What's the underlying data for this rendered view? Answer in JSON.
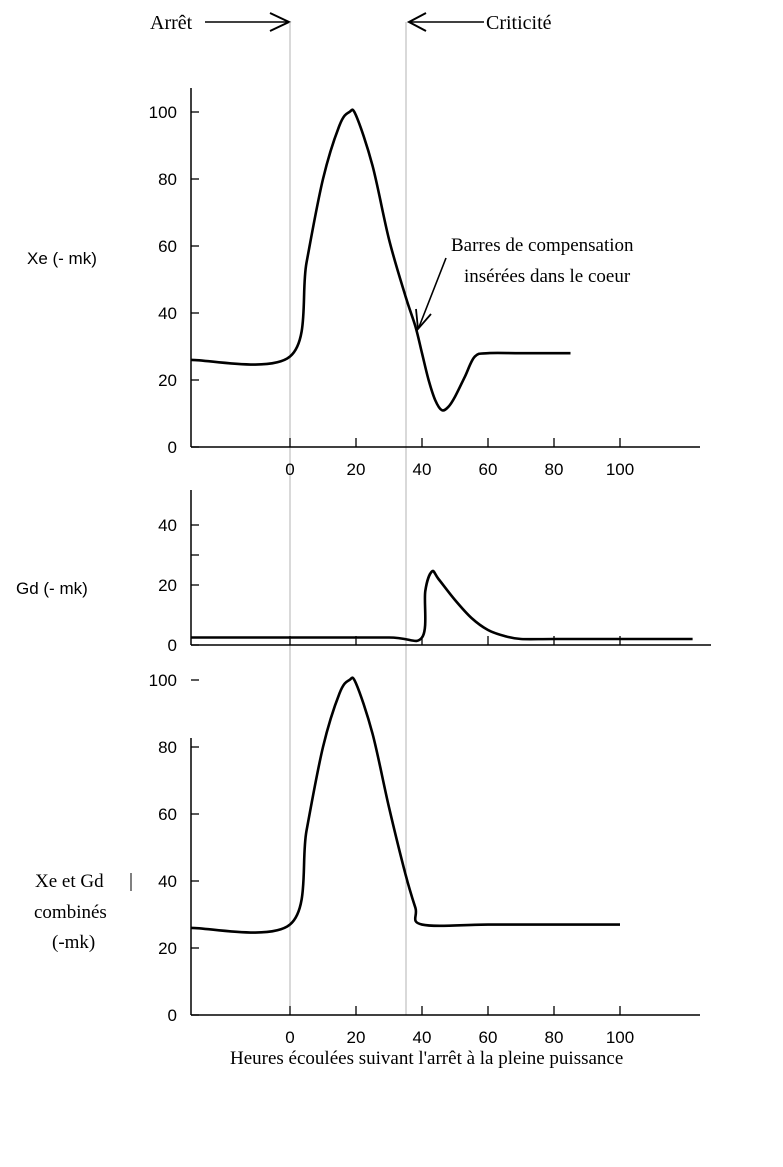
{
  "chart_data": [
    {
      "type": "line",
      "ylabel": "Xe (- mk)",
      "xticks": [
        0,
        20,
        40,
        60,
        80,
        100
      ],
      "yticks": [
        0,
        20,
        40,
        60,
        80,
        100
      ],
      "xlim": [
        -30,
        125
      ],
      "ylim": [
        0,
        110
      ],
      "grid": false,
      "series": [
        {
          "x": [
            -30,
            0,
            5,
            10,
            15,
            18,
            20,
            25,
            30,
            35,
            38,
            40,
            42,
            44,
            46,
            48,
            50,
            53,
            56,
            60,
            70,
            85
          ],
          "y": [
            26,
            27,
            55,
            80,
            96,
            100,
            99,
            84,
            62,
            45,
            36,
            28,
            20,
            14,
            11,
            12,
            15,
            21,
            27,
            28,
            28,
            28
          ]
        }
      ],
      "annotation": {
        "text_line1": "Barres de compensation",
        "text_line2": "insérées dans le coeur",
        "x": 38,
        "y": 38
      }
    },
    {
      "type": "line",
      "ylabel": "Gd (- mk)",
      "xticks": [
        0,
        20,
        40,
        60,
        80,
        100
      ],
      "yticks": [
        0,
        20,
        40
      ],
      "xlim": [
        -30,
        127
      ],
      "ylim": [
        0,
        50
      ],
      "grid": false,
      "series": [
        {
          "x": [
            -30,
            0,
            30,
            40,
            41,
            43,
            45,
            50,
            55,
            60,
            65,
            70,
            80,
            100,
            122
          ],
          "y": [
            2.5,
            2.5,
            2.5,
            2.5,
            18,
            24.5,
            22,
            15,
            9,
            5,
            3,
            2,
            2,
            2,
            2
          ]
        }
      ]
    },
    {
      "type": "line",
      "ylabel": "Xe et Gd combinés (-mk)",
      "ylabel_lines": [
        "Xe et Gd",
        "combinés",
        "(-mk)"
      ],
      "xlabel": "Heures écoulées suivant l'arrêt à la pleine puissance",
      "xticks": [
        0,
        20,
        40,
        60,
        80,
        100
      ],
      "yticks": [
        0,
        20,
        40,
        60,
        80,
        100
      ],
      "xlim": [
        -30,
        125
      ],
      "ylim": [
        0,
        110
      ],
      "grid": false,
      "series": [
        {
          "x": [
            -30,
            0,
            5,
            10,
            15,
            18,
            20,
            25,
            30,
            35,
            38,
            40,
            60,
            80,
            100
          ],
          "y": [
            26,
            27,
            55,
            80,
            96,
            100,
            99,
            84,
            62,
            42,
            32,
            27,
            27,
            27,
            27
          ]
        }
      ]
    }
  ],
  "markers": {
    "shutdown": {
      "label": "Arrêt",
      "x": 0
    },
    "criticality": {
      "label": "Criticité",
      "x": 35
    }
  },
  "colors": {
    "ink": "#000000",
    "guide": "#b3b3b3"
  }
}
